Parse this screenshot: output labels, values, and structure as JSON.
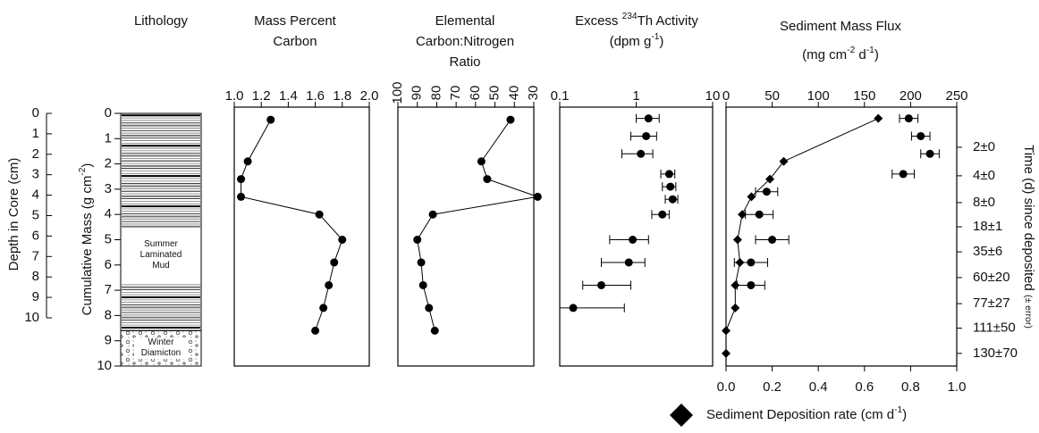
{
  "chart_data": [
    {
      "type": "lithology",
      "title_lines": [
        [
          "Lithology"
        ]
      ],
      "depth_label": [
        "Depth in Core (cm)"
      ],
      "depth_ylim": [
        0,
        10
      ],
      "depth_ticks": [
        0,
        1,
        2,
        3,
        4,
        5,
        6,
        7,
        8,
        9,
        10
      ],
      "ylabel": [
        "Cumulative Mass (g cm",
        {
          "sup": "-2"
        },
        ")"
      ],
      "ylim": [
        0,
        10
      ],
      "yticks": [
        0,
        1,
        2,
        3,
        4,
        5,
        6,
        7,
        8,
        9,
        10
      ],
      "units": [
        {
          "name": "Summer Laminated Mud",
          "from": 0,
          "to": 8.6,
          "pattern": "laminated"
        },
        {
          "name": "Winter Diamicton",
          "from": 8.6,
          "to": 10,
          "pattern": "diamicton"
        }
      ]
    },
    {
      "type": "line",
      "title_lines": [
        [
          "Mass Percent"
        ],
        [
          "Carbon"
        ]
      ],
      "xlim": [
        1,
        2
      ],
      "xticks": [
        {
          "value": 1,
          "label": "1.0"
        },
        1.2,
        1.4,
        1.6,
        1.8,
        {
          "value": 2,
          "label": "2.0"
        }
      ],
      "ylim": [
        0,
        10
      ],
      "series": [
        {
          "color": "#000000",
          "values": [
            1.27,
            1.1,
            1.05,
            1.05,
            1.63,
            1.8,
            1.74,
            1.7,
            1.66,
            1.6
          ],
          "mass": [
            0.25,
            1.9,
            2.6,
            3.3,
            4.0,
            5.0,
            5.9,
            6.8,
            7.7,
            8.6
          ]
        }
      ]
    },
    {
      "type": "line",
      "title_lines": [
        [
          "Elemental"
        ],
        [
          "Carbon:Nitrogen"
        ],
        [
          "Ratio"
        ]
      ],
      "xlim": [
        100,
        30
      ],
      "xticks": [
        100,
        90,
        80,
        70,
        60,
        50,
        40,
        30
      ],
      "rotate_xticks": true,
      "ylim": [
        0,
        10
      ],
      "series": [
        {
          "color": "#000000",
          "values": [
            42,
            57,
            54,
            28,
            82,
            90,
            88,
            87,
            84,
            81
          ],
          "mass": [
            0.25,
            1.9,
            2.6,
            3.3,
            4.0,
            5.0,
            5.9,
            6.8,
            7.7,
            8.6
          ]
        }
      ]
    },
    {
      "type": "errorbar",
      "title_lines": [
        [
          "Excess ",
          {
            "sup": "234"
          },
          "Th Activity"
        ],
        [
          "(dpm g",
          {
            "sup": "-1"
          },
          ")"
        ]
      ],
      "xscale": "log",
      "xlim": [
        0.1,
        10
      ],
      "xticks": [
        0.1,
        1,
        10
      ],
      "ylim": [
        0,
        10
      ],
      "series": [
        {
          "color": "#000000",
          "values": [
            1.45,
            1.35,
            1.15,
            2.7,
            2.8,
            3.0,
            2.2,
            0.9,
            0.8,
            0.35,
            0.15
          ],
          "err_minus": [
            0.45,
            0.5,
            0.5,
            0.6,
            0.6,
            0.6,
            0.6,
            0.45,
            0.45,
            0.15,
            0.05
          ],
          "err_plus": [
            0.55,
            0.5,
            0.5,
            0.5,
            0.5,
            0.5,
            0.5,
            0.55,
            0.5,
            0.5,
            0.55
          ],
          "mass": [
            0.2,
            0.9,
            1.6,
            2.4,
            2.9,
            3.4,
            4.0,
            5.0,
            5.9,
            6.8,
            7.7
          ]
        }
      ]
    },
    {
      "type": "dual",
      "title_lines": [
        [
          "Sediment Mass Flux"
        ],
        [
          "(mg cm",
          {
            "sup": "-2"
          },
          " d",
          {
            "sup": "-1"
          },
          ")"
        ]
      ],
      "xlim": [
        0,
        1
      ],
      "xticks": [
        {
          "value": 0,
          "label": "0.0"
        },
        0.2,
        0.4,
        0.6,
        0.8,
        {
          "value": 1,
          "label": "1.0"
        }
      ],
      "x2lim": [
        0,
        250
      ],
      "x2ticks": [
        0,
        50,
        100,
        150,
        200,
        250
      ],
      "ylim": [
        0,
        10
      ],
      "y2label": [
        "Time (d) since deposited ",
        {
          "small": "(± error)"
        }
      ],
      "y2ticks": [
        {
          "value": 1.34,
          "label": "2±0"
        },
        {
          "value": 2.47,
          "label": "4±0"
        },
        {
          "value": 3.53,
          "label": "8±0"
        },
        {
          "value": 4.49,
          "label": "18±1"
        },
        {
          "value": 5.48,
          "label": "35±6"
        },
        {
          "value": 6.5,
          "label": "60±20"
        },
        {
          "value": 7.53,
          "label": "77±27"
        },
        {
          "value": 8.5,
          "label": "111±50"
        },
        {
          "value": 9.5,
          "label": "130±70"
        }
      ],
      "series": [
        {
          "name": [
            "Sediment Deposition rate (cm d",
            {
              "sup": "-1"
            },
            ")"
          ],
          "marker": "diamond",
          "color": "#000000",
          "axis": "x",
          "values": [
            0.66,
            0.25,
            0.19,
            0.11,
            0.07,
            0.05,
            0.06,
            0.04,
            0.04,
            0.0,
            0.0
          ],
          "mass": [
            0.2,
            1.9,
            2.6,
            3.3,
            4.0,
            5.0,
            5.9,
            6.8,
            7.7,
            8.6,
            9.5
          ]
        },
        {
          "marker": "circle",
          "color": "#000000",
          "axis": "x2",
          "values": [
            198,
            211,
            221,
            192,
            44,
            36,
            50,
            27,
            27
          ],
          "err": [
            10,
            10,
            10,
            12,
            12,
            15,
            18,
            18,
            15
          ],
          "mass": [
            0.2,
            0.9,
            1.6,
            2.4,
            3.1,
            4.0,
            5.0,
            5.9,
            6.8
          ]
        }
      ]
    }
  ]
}
